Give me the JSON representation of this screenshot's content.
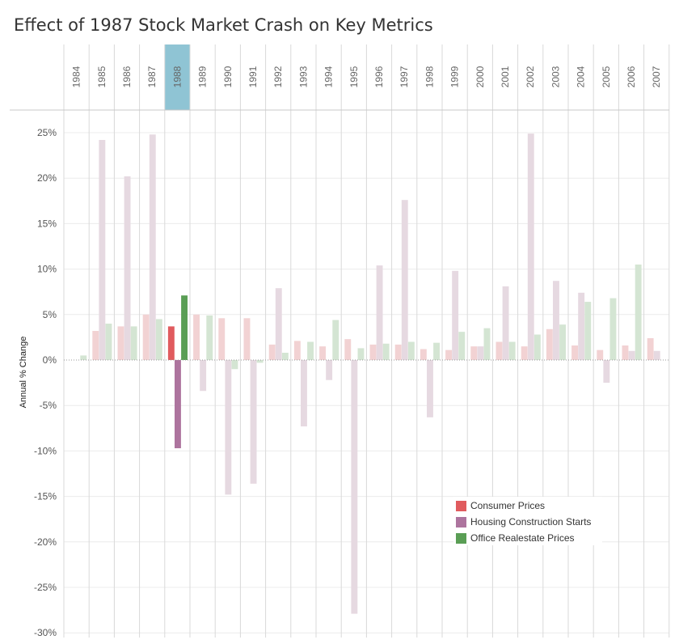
{
  "title": "Effect of 1987 Stock Market Crash on Key Metrics",
  "colors": {
    "consumer": "#e05b5e",
    "housing": "#ad749e",
    "office": "#5a9e55",
    "consumer_faded": "#f2d2d3",
    "housing_faded": "#e6d9e1",
    "office_faded": "#d4e5d3",
    "highlight": "#8fc4d4"
  },
  "chart_data": {
    "type": "bar",
    "title": "Effect of 1987 Stock Market Crash on Key Metrics",
    "ylabel": "Annual % Change",
    "ylim": [
      -30,
      25
    ],
    "yticks": [
      25,
      20,
      15,
      10,
      5,
      0,
      -5,
      -10,
      -15,
      -20,
      -25,
      -30
    ],
    "ytick_labels": [
      "25%",
      "20%",
      "15%",
      "10%",
      "5%",
      "0%",
      "-5%",
      "-10%",
      "-15%",
      "-20%",
      "-25%",
      "-30%"
    ],
    "grid": true,
    "legend_position": "bottom-right",
    "highlighted_category": "1988",
    "categories": [
      "1984",
      "1985",
      "1986",
      "1987",
      "1988",
      "1989",
      "1990",
      "1991",
      "1992",
      "1993",
      "1994",
      "1995",
      "1996",
      "1997",
      "1998",
      "1999",
      "2000",
      "2001",
      "2002",
      "2003",
      "2004",
      "2005",
      "2006",
      "2007"
    ],
    "series": [
      {
        "name": "Consumer Prices",
        "values": [
          null,
          3.2,
          3.7,
          5.0,
          3.7,
          5.0,
          4.6,
          4.6,
          1.7,
          2.1,
          1.5,
          2.3,
          1.7,
          1.7,
          1.2,
          1.1,
          1.5,
          2.0,
          1.5,
          3.4,
          1.6,
          1.1,
          1.6,
          2.4
        ]
      },
      {
        "name": "Housing Construction Starts",
        "values": [
          null,
          24.2,
          20.2,
          24.8,
          -9.7,
          -3.4,
          -14.8,
          -13.6,
          7.9,
          -7.3,
          -2.2,
          -27.9,
          10.4,
          17.6,
          -6.3,
          9.8,
          1.5,
          8.1,
          24.9,
          8.7,
          7.4,
          -2.5,
          1.0,
          1.0
        ]
      },
      {
        "name": "Office Realestate Prices",
        "values": [
          0.5,
          4.0,
          3.7,
          4.5,
          7.1,
          4.9,
          -1.0,
          -0.3,
          0.8,
          2.0,
          4.4,
          1.3,
          1.8,
          2.0,
          1.9,
          3.1,
          3.5,
          2.0,
          2.8,
          3.9,
          6.4,
          6.8,
          10.5,
          null
        ]
      }
    ]
  },
  "legend": {
    "items": [
      {
        "label": "Consumer Prices",
        "color": "#e05b5e"
      },
      {
        "label": "Housing Construction Starts",
        "color": "#ad749e"
      },
      {
        "label": "Office Realestate Prices",
        "color": "#5a9e55"
      }
    ]
  }
}
